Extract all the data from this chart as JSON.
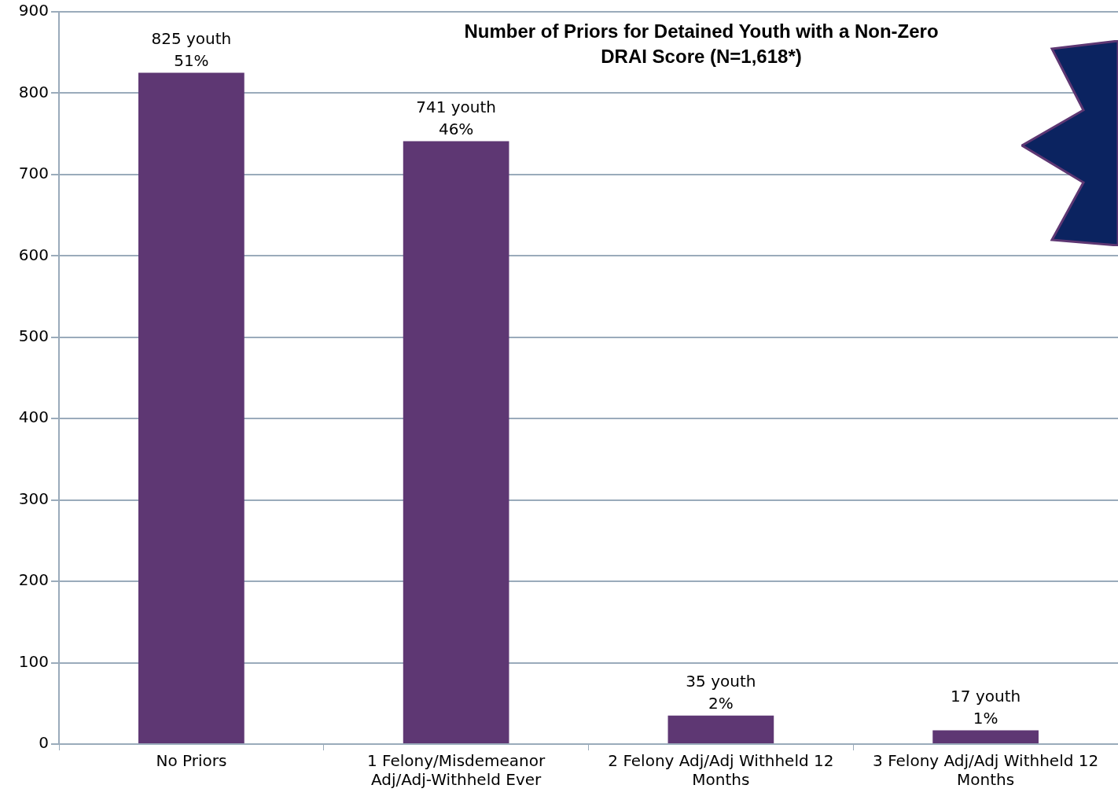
{
  "chart_data": {
    "type": "bar",
    "title": "Number of Priors for Detained Youth with a Non-Zero DRAI Score (N=1,618*)",
    "categories": [
      "No Priors",
      "1 Felony/Misdemeanor Adj/Adj-Withheld Ever",
      "2 Felony Adj/Adj Withheld 12 Months",
      "3 Felony Adj/Adj Withheld 12 Months"
    ],
    "values": [
      825,
      741,
      35,
      17
    ],
    "color": "#5e3773",
    "value_labels": [
      "825 youth\n51%",
      "741 youth\n46%",
      "35 youth\n2%",
      "17 youth\n1%"
    ],
    "ylim": [
      0,
      900
    ],
    "yticks": [
      0,
      100,
      200,
      300,
      400,
      500,
      600,
      700,
      800,
      900
    ],
    "grid": "y",
    "legend": false
  }
}
